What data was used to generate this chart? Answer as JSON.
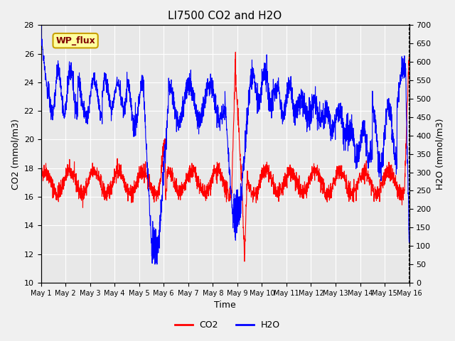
{
  "title": "LI7500 CO2 and H2O",
  "xlabel": "Time",
  "ylabel_left": "CO2 (mmol/m3)",
  "ylabel_right": "H2O (mmol/m3)",
  "ylim_left": [
    10,
    28
  ],
  "ylim_right": [
    0,
    700
  ],
  "yticks_left": [
    10,
    12,
    14,
    16,
    18,
    20,
    22,
    24,
    26,
    28
  ],
  "yticks_right": [
    0,
    50,
    100,
    150,
    200,
    250,
    300,
    350,
    400,
    450,
    500,
    550,
    600,
    650,
    700
  ],
  "xtick_labels": [
    "May 1",
    "May 2",
    "May 3",
    "May 4",
    "May 5",
    "May 6",
    "May 7",
    "May 8",
    "May 9",
    "May 10",
    "May 11",
    "May 12",
    "May 13",
    "May 14",
    "May 15",
    "May 16"
  ],
  "watermark_text": "WP_flux",
  "watermark_bg": "#ffffa0",
  "watermark_border": "#c8a000",
  "co2_color": "#ff0000",
  "h2o_color": "#0000ff",
  "bg_color": "#f0f0f0",
  "plot_bg": "#e8e8e8",
  "grid_color": "#ffffff",
  "n_points": 2304,
  "days": 15,
  "seed": 42
}
